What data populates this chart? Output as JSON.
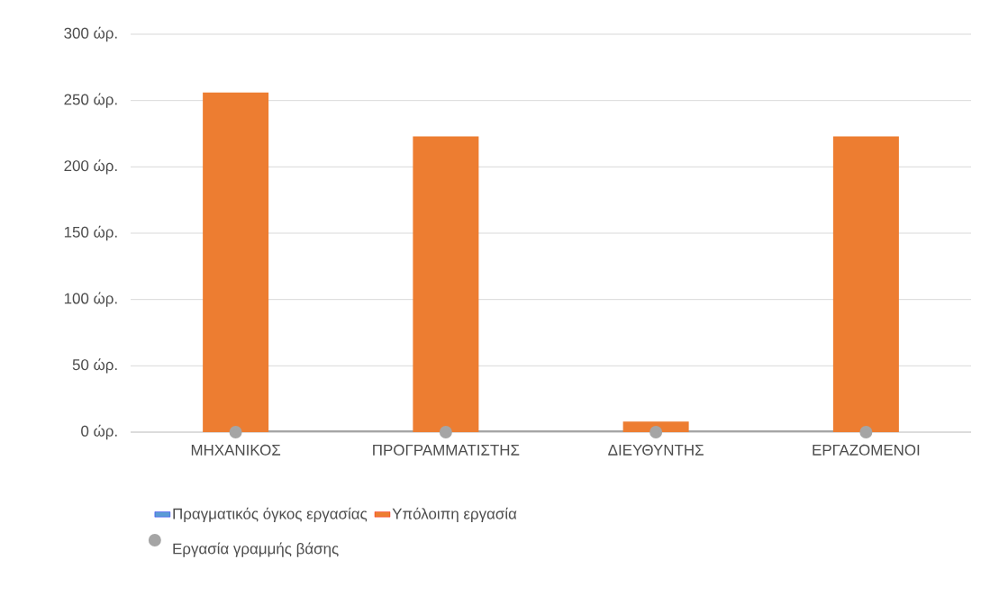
{
  "chart_data": {
    "type": "bar",
    "stacked": true,
    "categories": [
      "ΜΗΧΑΝΙΚΟΣ",
      "ΠΡΟΓΡΑΜΜΑΤΙΣΤΗΣ",
      "ΔΙΕΥΘΥΝΤΗΣ",
      "ΕΡΓΑΖΟΜΕΝΟΙ"
    ],
    "series": [
      {
        "name": "Πραγματικός όγκος εργασίας",
        "color": "#5b9bd5",
        "values": [
          0,
          0,
          0,
          0
        ]
      },
      {
        "name": "Υπόλοιπη εργασία",
        "color": "#ed7d31",
        "values": [
          256,
          223,
          8,
          223
        ]
      },
      {
        "name": "Εργασία γραμμής βάσης",
        "type": "line",
        "color": "#a5a5a5",
        "marker": "circle",
        "values": [
          0,
          0,
          0,
          0
        ]
      }
    ],
    "ylim": [
      0,
      300
    ],
    "yticks": [
      {
        "value": 0,
        "label": "0 ώρ."
      },
      {
        "value": 50,
        "label": "50 ώρ."
      },
      {
        "value": 100,
        "label": "100 ώρ."
      },
      {
        "value": 150,
        "label": "150 ώρ."
      },
      {
        "value": 200,
        "label": "200 ώρ."
      },
      {
        "value": 250,
        "label": "250 ώρ."
      },
      {
        "value": 300,
        "label": "300 ώρ."
      }
    ],
    "grid": "y",
    "legend": "bottom"
  }
}
